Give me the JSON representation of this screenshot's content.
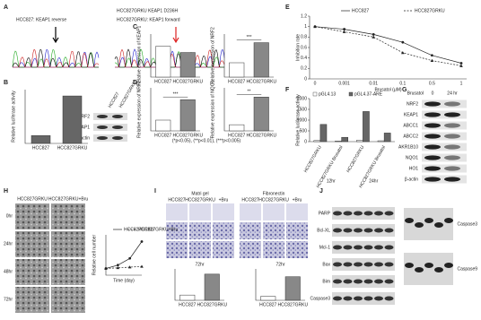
{
  "figure": {
    "panel_labels": [
      "A",
      "B",
      "C",
      "D",
      "E",
      "F",
      "G",
      "H",
      "I",
      "J"
    ],
    "a": {
      "left_title": "HCC827: KEAP1 reverse",
      "right_title": "HCC827GRKU: KEAP1 forward",
      "mutation": "HCC827GRKU KEAP1 D236H"
    },
    "b_blot": {
      "columns": [
        "HCC827",
        "HCC827GRKU"
      ],
      "rows": [
        "NRF2",
        "KEAP1",
        "β-actin"
      ]
    },
    "d_note": "(*p<0.05), (**p<0.01), (***p<0.005)",
    "g_blot": {
      "treatment": "Brusatol",
      "columns": [
        "0",
        "24 hr"
      ],
      "rows": [
        "NRF2",
        "KEAP1",
        "ABCC1",
        "ABCC2",
        "AKR1B10",
        "NQO1",
        "HO1",
        "β-actin"
      ]
    },
    "h_images": {
      "columns": [
        "HCC827GRKU",
        "HCC827GRKU+Bru"
      ],
      "rows": [
        "0hr",
        "24hr",
        "48hr",
        "72hr"
      ]
    },
    "i_images": {
      "groups": [
        "Matri gel",
        "Fibronectin"
      ],
      "columns": [
        "HCC827",
        "HCC827GRKU",
        "+Bru"
      ]
    },
    "j_blot": {
      "left_rows": [
        "PARP",
        "Bcl-XL",
        "Mcl-1",
        "Bax",
        "Bim",
        "Caspase3"
      ],
      "right_rows": [
        "Caspase3",
        "Caspase9"
      ]
    }
  },
  "chart_data": [
    {
      "type": "bar",
      "y_label": "Relative luciferase activity",
      "categories": [
        "HCC827",
        "HCC827GRKU"
      ],
      "values": [
        25,
        150
      ],
      "colors": [
        "#666666",
        "#666666"
      ],
      "ylim": [
        0,
        170
      ]
    },
    {
      "type": "bar",
      "y_label": "Relative expression of KEAP1",
      "categories": [
        "HCC827",
        "HCC827GRKU"
      ],
      "values": [
        1.0,
        0.8
      ],
      "colors": [
        "#ffffff",
        "#888888"
      ],
      "ylim": [
        0,
        1.4
      ]
    },
    {
      "type": "bar",
      "y_label": "Relative expression of NRF2",
      "categories": [
        "HCC827",
        "HCC827GRKU"
      ],
      "values": [
        1.0,
        2.4
      ],
      "colors": [
        "#ffffff",
        "#888888"
      ],
      "ylim": [
        0,
        3
      ],
      "annotation": "***"
    },
    {
      "type": "bar",
      "y_label": "Relative expression of NRF2",
      "categories": [
        "HCC827",
        "HCC827GRKU"
      ],
      "values": [
        1.0,
        2.9
      ],
      "colors": [
        "#ffffff",
        "#888888"
      ],
      "ylim": [
        0,
        4
      ],
      "annotation": "***"
    },
    {
      "type": "bar",
      "y_label": "Relative expression of NQO1",
      "categories": [
        "HCC827",
        "HCC827GRKU"
      ],
      "values": [
        1.0,
        5.5
      ],
      "colors": [
        "#ffffff",
        "#888888"
      ],
      "ylim": [
        0,
        7
      ],
      "annotation": "**"
    },
    {
      "type": "line",
      "y_label": "Inhibition rate",
      "x_label": "Brusatol (μM)",
      "categories": [
        "0",
        "0.001",
        "0.01",
        "0.1",
        "0.5",
        "1"
      ],
      "series": [
        {
          "name": "HCC827",
          "color": "#222222",
          "dash": false,
          "marker": "circle",
          "values": [
            1.0,
            0.95,
            0.85,
            0.7,
            0.45,
            0.3
          ]
        },
        {
          "name": "HCC827GRKU",
          "color": "#222222",
          "dash": true,
          "marker": "triangle",
          "values": [
            1.0,
            0.9,
            0.8,
            0.5,
            0.35,
            0.25
          ]
        }
      ],
      "ylim": [
        0,
        1.2
      ],
      "yticks": [
        0,
        0.2,
        0.4,
        0.6,
        0.8,
        1,
        1.2
      ]
    },
    {
      "type": "bar",
      "y_label": "Relative luciferase activity",
      "categories": [
        "HCC827GRKU",
        "HCC827GRKU Brusatol",
        "HCC827GRKU",
        "HCC827GRKU Brusatol"
      ],
      "group_labels": [
        "12hr",
        "24hr"
      ],
      "series": [
        {
          "name": "pGL4.13",
          "color": "#ffffff",
          "values": [
            50,
            30,
            60,
            40
          ]
        },
        {
          "name": "pGL4.37-ARE",
          "color": "#666666",
          "values": [
            800,
            200,
            1400,
            400
          ]
        }
      ],
      "ylim": [
        0,
        2000
      ],
      "yticks": [
        0,
        500,
        1000,
        1500,
        2000
      ]
    },
    {
      "type": "line",
      "y_label": "Relative cell number",
      "x_label": "Time (day)",
      "x": [
        0,
        1,
        2,
        3
      ],
      "series": [
        {
          "name": "HCC827GRKU",
          "color": "#222222",
          "dash": false,
          "marker": "circle",
          "values": [
            1,
            1.5,
            2.5,
            5
          ]
        },
        {
          "name": "HCC827GRKU+Bru",
          "color": "#222222",
          "dash": true,
          "marker": "triangle",
          "values": [
            1,
            1.1,
            1.2,
            1.3
          ]
        }
      ],
      "xlim": [
        0,
        3
      ],
      "ylim": [
        0,
        6
      ]
    },
    {
      "type": "bar",
      "title": "72hr",
      "categories": [
        "HCC827",
        "HCC827GRKU"
      ],
      "values": [
        1,
        5
      ],
      "colors": [
        "#ffffff",
        "#888888"
      ],
      "ylim": [
        0,
        6
      ]
    },
    {
      "type": "bar",
      "title": "72hr",
      "categories": [
        "HCC827",
        "HCC827GRKU"
      ],
      "values": [
        1,
        6
      ],
      "colors": [
        "#ffffff",
        "#888888"
      ],
      "ylim": [
        0,
        8
      ]
    }
  ]
}
